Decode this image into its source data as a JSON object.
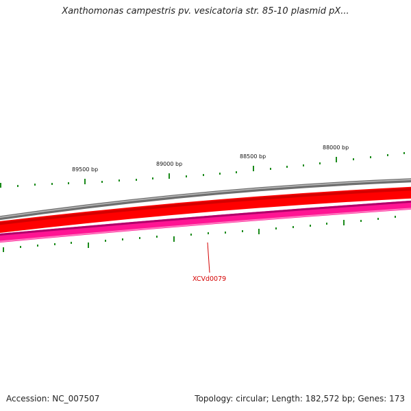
{
  "title": "Xanthomonas campestris pv. vesicatoria str. 85-10 plasmid pX...",
  "footer": {
    "accession": "Accession: NC_007507",
    "summary": "Topology: circular; Length: 182,572 bp; Genes: 173"
  },
  "ticks": [
    {
      "label": "89500 bp",
      "bp": 89500
    },
    {
      "label": "89000 bp",
      "bp": 89000
    },
    {
      "label": "88500 bp",
      "bp": 88500
    },
    {
      "label": "88000 bp",
      "bp": 88000
    }
  ],
  "gene": {
    "label": "XCVd0079"
  },
  "colors": {
    "backbone": "#808080",
    "forward_strand": "#ff0000",
    "reverse_strand": "#ff1493",
    "ticks": "#1a8a1a",
    "gene_label": "#d40000"
  }
}
